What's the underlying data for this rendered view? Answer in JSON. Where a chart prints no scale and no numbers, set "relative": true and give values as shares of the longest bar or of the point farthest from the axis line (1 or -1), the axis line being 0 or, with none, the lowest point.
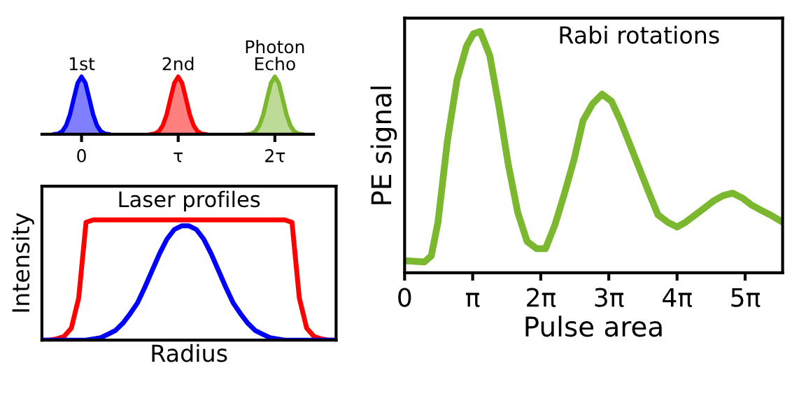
{
  "chart_data": [
    {
      "type": "area",
      "relative": true,
      "tick_labels": "x",
      "xlim": [
        -0.41,
        2.4
      ],
      "xticks": [
        0,
        {
          "value": 1,
          "label": "τ"
        },
        {
          "value": 2,
          "label": "2τ"
        }
      ],
      "series": [
        {
          "name": "1st",
          "color": "#0000ff",
          "x": [
            -0.28,
            -0.24,
            -0.2,
            -0.16,
            -0.12,
            -0.08,
            -0.04,
            0,
            0.04,
            0.08,
            0.12,
            0.16,
            0.2,
            0.24,
            0.28
          ],
          "values": [
            0,
            0.01,
            0.05,
            0.15,
            0.34,
            0.62,
            0.89,
            1,
            0.89,
            0.62,
            0.34,
            0.15,
            0.05,
            0.01,
            0
          ]
        },
        {
          "name": "2nd",
          "color": "#ff0000",
          "x": [
            0.72,
            0.76,
            0.8,
            0.84,
            0.88,
            0.92,
            0.96,
            1,
            1.04,
            1.08,
            1.12,
            1.16,
            1.2,
            1.24,
            1.28
          ],
          "values": [
            0,
            0.01,
            0.05,
            0.15,
            0.34,
            0.62,
            0.89,
            1,
            0.89,
            0.62,
            0.34,
            0.15,
            0.05,
            0.01,
            0
          ]
        },
        {
          "name": "Photon\nEcho",
          "color": "#7cb82f",
          "x": [
            1.72,
            1.76,
            1.8,
            1.84,
            1.88,
            1.92,
            1.96,
            2,
            2.04,
            2.08,
            2.12,
            2.16,
            2.2,
            2.24,
            2.28
          ],
          "values": [
            0,
            0.01,
            0.05,
            0.15,
            0.34,
            0.62,
            0.89,
            1,
            0.89,
            0.62,
            0.34,
            0.15,
            0.05,
            0.01,
            0
          ]
        }
      ]
    },
    {
      "type": "line",
      "relative": true,
      "tick_labels": false,
      "title": "Laser profiles",
      "xlabel": "Radius",
      "ylabel": "Intensity",
      "categories": [
        null,
        null,
        null,
        null,
        null,
        null,
        null,
        null,
        null,
        null,
        null,
        null,
        null,
        null,
        null,
        null,
        null,
        null,
        null,
        null,
        null,
        null,
        null,
        null,
        null,
        null,
        null,
        null,
        null,
        null,
        null,
        null,
        null,
        null,
        null,
        null,
        null,
        null,
        null,
        null,
        null
      ],
      "series": [
        {
          "color": "#ff0000",
          "values": [
            0,
            0,
            0.01,
            0.03,
            0.1,
            0.35,
            0.98,
            1,
            1,
            1,
            1,
            1,
            1,
            1,
            1,
            1,
            1,
            1,
            1,
            1,
            1,
            1,
            1,
            1,
            1,
            1,
            1,
            1,
            1,
            1,
            1,
            1,
            1,
            1,
            0.98,
            0.35,
            0.1,
            0.03,
            0.01,
            0,
            0
          ]
        },
        {
          "color": "#0000ff",
          "values": [
            0,
            0,
            0,
            0,
            0,
            0,
            0,
            0.01,
            0.02,
            0.05,
            0.08,
            0.14,
            0.22,
            0.31,
            0.44,
            0.58,
            0.72,
            0.84,
            0.92,
            0.95,
            0.95,
            0.92,
            0.84,
            0.72,
            0.58,
            0.44,
            0.31,
            0.22,
            0.14,
            0.08,
            0.05,
            0.02,
            0.01,
            0,
            0,
            0,
            0,
            0,
            0,
            0,
            0
          ]
        }
      ]
    },
    {
      "type": "line",
      "relative": true,
      "tick_labels": "x",
      "title": "Rabi rotations",
      "xlabel": "Pulse area",
      "ylabel": "PE signal",
      "xlim": [
        0,
        17.44
      ],
      "xticks": [
        0,
        {
          "value": 3.14,
          "label": "π"
        },
        {
          "value": 6.28,
          "label": "2π"
        },
        {
          "value": 9.42,
          "label": "3π"
        },
        {
          "value": 12.57,
          "label": "4π"
        },
        {
          "value": 15.71,
          "label": "5π"
        }
      ],
      "series": [
        {
          "color": "#7cb82f",
          "x": [
            0.03,
            0.91,
            1.23,
            1.54,
            1.98,
            2.42,
            2.86,
            3.17,
            3.49,
            3.93,
            4.37,
            4.78,
            5.22,
            5.65,
            6.09,
            6.5,
            6.94,
            7.38,
            7.82,
            8.23,
            8.67,
            9.11,
            9.55,
            9.96,
            10.4,
            10.84,
            11.28,
            11.69,
            12.13,
            12.57,
            12.97,
            13.41,
            13.85,
            14.29,
            14.7,
            15.14,
            15.58,
            16.02,
            16.43,
            16.87,
            17.44
          ],
          "values": [
            0.05,
            0.045,
            0.07,
            0.21,
            0.55,
            0.8,
            0.94,
            0.99,
            1.0,
            0.9,
            0.68,
            0.45,
            0.25,
            0.13,
            0.1,
            0.1,
            0.2,
            0.33,
            0.47,
            0.63,
            0.7,
            0.74,
            0.71,
            0.63,
            0.53,
            0.43,
            0.33,
            0.24,
            0.21,
            0.19,
            0.21,
            0.24,
            0.27,
            0.3,
            0.32,
            0.33,
            0.31,
            0.28,
            0.26,
            0.24,
            0.21
          ]
        }
      ]
    }
  ]
}
